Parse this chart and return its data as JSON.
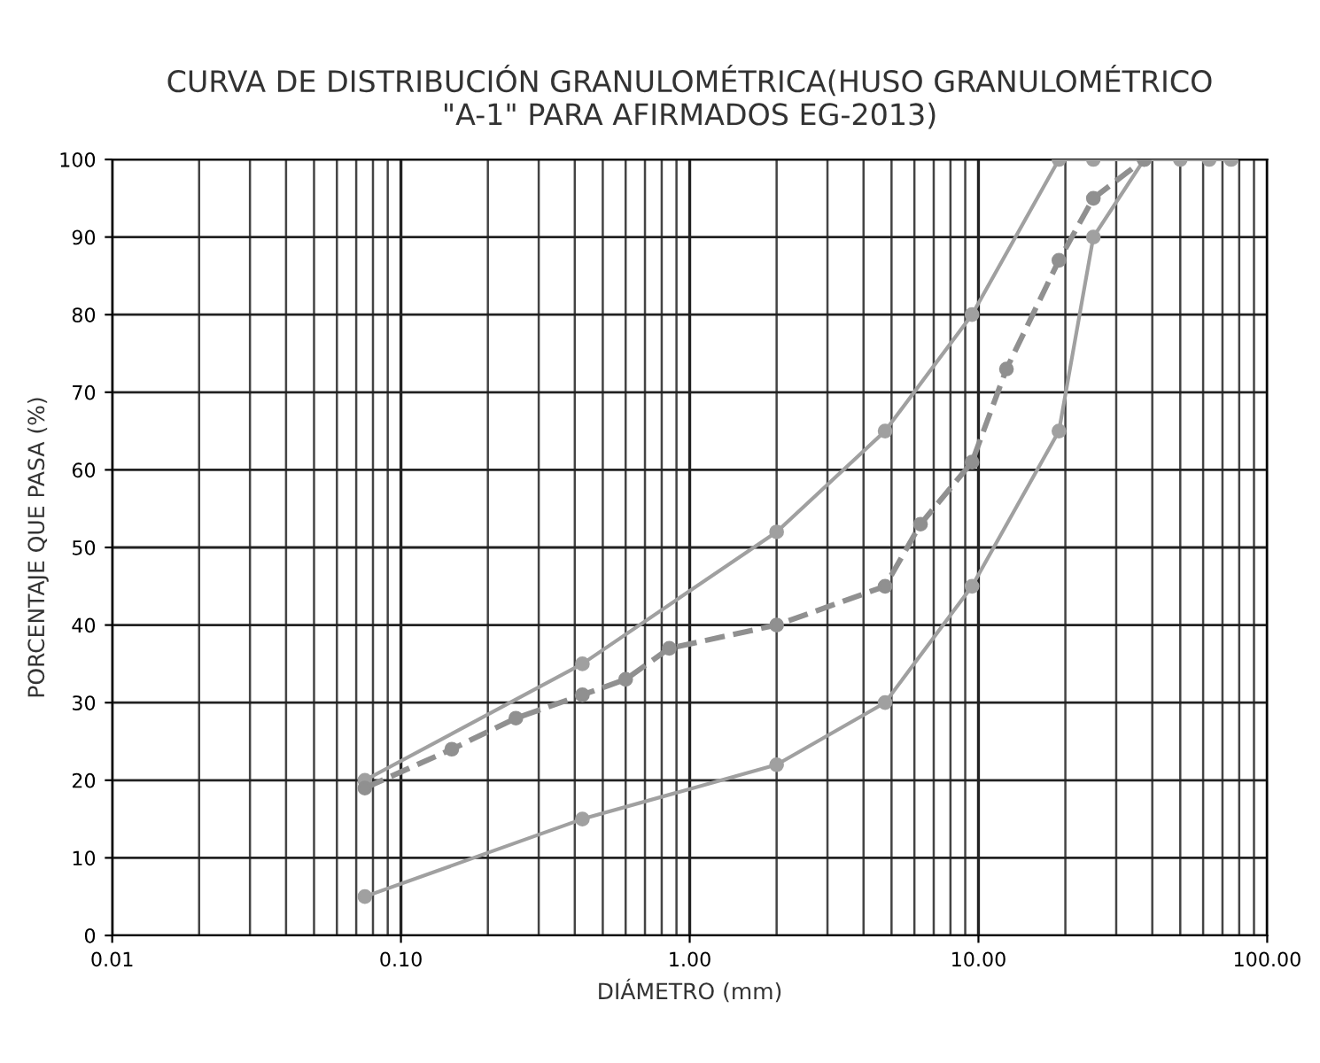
{
  "chart_data": {
    "type": "line",
    "title": "CURVA DE DISTRIBUCIÓN GRANULOMÉTRICA(HUSO GRANULOMÉTRICO\n\"A-1\" PARA AFIRMADOS EG-2013)",
    "xlabel": "DIÁMETRO (mm)",
    "ylabel": "PORCENTAJE QUE PASA (%)",
    "log": "x",
    "xlim": [
      0.01,
      100
    ],
    "ylim": [
      0,
      100
    ],
    "xticks": [
      {
        "value": 0.01,
        "label": "0.01"
      },
      {
        "value": 0.1,
        "label": "0.10"
      },
      {
        "value": 1,
        "label": "1.00"
      },
      {
        "value": 10,
        "label": "10.00"
      },
      {
        "value": 100,
        "label": "100.00"
      }
    ],
    "yticks": [
      0,
      10,
      20,
      30,
      40,
      50,
      60,
      70,
      80,
      90,
      100
    ],
    "grid": true,
    "marker": "circle",
    "legend": false,
    "series": [
      {
        "color": "#a0a0a0",
        "line_style": "solid",
        "x": [
          0.075,
          0.425,
          2,
          4.75,
          9.5,
          19,
          25,
          37.5,
          50,
          63,
          75
        ],
        "values": [
          20,
          35,
          52,
          65,
          80,
          100,
          100,
          100,
          100,
          100,
          100
        ]
      },
      {
        "color": "#a0a0a0",
        "line_style": "solid",
        "x": [
          0.075,
          0.425,
          2,
          4.75,
          9.5,
          19,
          25,
          37.5
        ],
        "values": [
          5,
          15,
          22,
          30,
          45,
          65,
          90,
          100
        ]
      },
      {
        "color": "#909090",
        "line_style": "dashed",
        "x": [
          0.075,
          0.15,
          0.25,
          0.425,
          0.6,
          0.85,
          2,
          4.75,
          6.3,
          9.5,
          12.5,
          19,
          25,
          37.5
        ],
        "values": [
          19,
          24,
          28,
          31,
          33,
          37,
          40,
          45,
          53,
          61,
          73,
          87,
          95,
          100
        ]
      }
    ]
  }
}
